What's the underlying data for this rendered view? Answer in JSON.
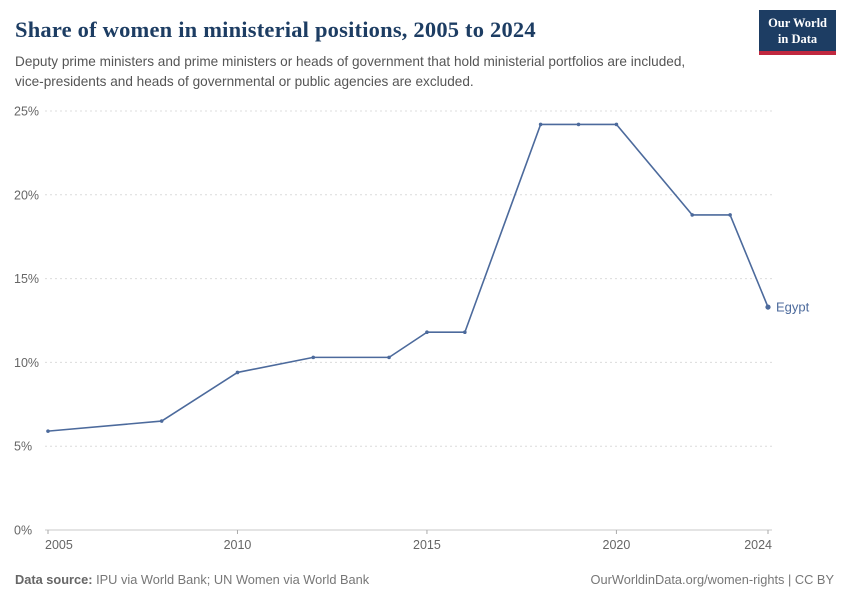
{
  "header": {
    "title": "Share of women in ministerial positions, 2005 to 2024",
    "subtitle": "Deputy prime ministers and prime ministers or heads of government that hold ministerial portfolios are included, vice-presidents and heads of governmental or public agencies are excluded.",
    "logo": {
      "line1": "Our World",
      "line2": "in Data"
    }
  },
  "footer": {
    "source_label": "Data source:",
    "source_text": " IPU via World Bank; UN Women via World Bank",
    "right_text": "OurWorldinData.org/women-rights | CC BY"
  },
  "colors": {
    "title": "#1d3d63",
    "subtitle": "#555555",
    "axis_text": "#666666",
    "gridline": "#dcdcdc",
    "axis_line": "#c8c8c8",
    "logo_bg": "#1d3d63",
    "logo_accent": "#c0283f",
    "series": "#4c6a9c"
  },
  "chart_data": {
    "type": "line",
    "title": "Share of women in ministerial positions, 2005 to 2024",
    "xlabel": "",
    "ylabel": "",
    "xlim": [
      2005,
      2024
    ],
    "ylim": [
      0,
      25
    ],
    "grid": true,
    "legend": "end-of-line-label",
    "x": [
      2005,
      2008,
      2010,
      2012,
      2014,
      2015,
      2016,
      2018,
      2019,
      2020,
      2022,
      2023,
      2024
    ],
    "series": [
      {
        "name": "Egypt",
        "color": "#4c6a9c",
        "values": [
          5.9,
          6.5,
          9.4,
          10.3,
          10.3,
          11.8,
          11.8,
          24.2,
          24.2,
          24.2,
          18.8,
          18.8,
          13.3
        ]
      }
    ],
    "x_ticks": [
      2005,
      2010,
      2015,
      2020,
      2024
    ],
    "y_ticks": [
      0,
      5,
      10,
      15,
      20,
      25
    ],
    "y_tick_labels": [
      "0%",
      "5%",
      "10%",
      "15%",
      "20%",
      "25%"
    ]
  }
}
